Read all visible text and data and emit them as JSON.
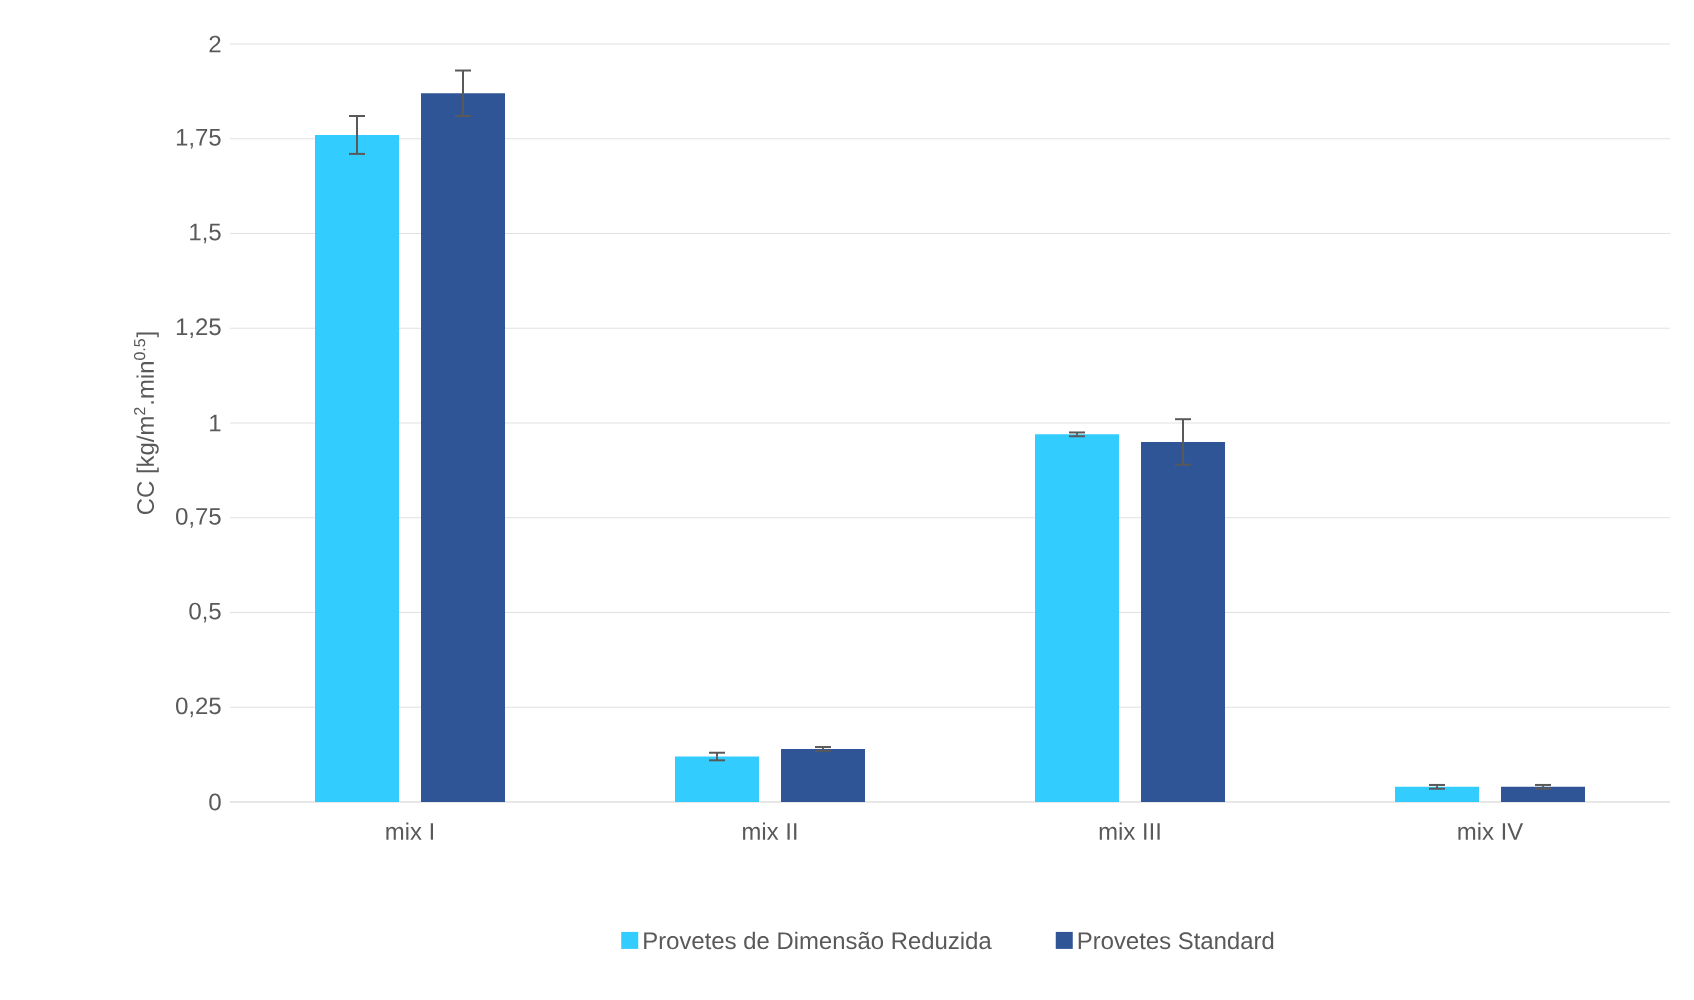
{
  "chart_data": {
    "type": "bar",
    "ylabel": "CC [kg/m$^{2}$.min$^{0.5}$]",
    "categories": [
      "mix I",
      "mix II",
      "mix III",
      "mix IV"
    ],
    "series": [
      {
        "name": "Provetes de Dimensão Reduzida",
        "color": "#33ccff",
        "values": [
          1.76,
          0.12,
          0.97,
          0.04
        ],
        "errors": [
          0.05,
          0.01,
          0.005,
          0.005
        ]
      },
      {
        "name": "Provetes Standard",
        "color": "#2f5597",
        "values": [
          1.87,
          0.14,
          0.95,
          0.04
        ],
        "errors": [
          0.06,
          0.005,
          0.06,
          0.005
        ]
      }
    ],
    "ylim": [
      0,
      2
    ],
    "yticks": [
      0,
      {
        "value": 0.25,
        "label": "0,25"
      },
      {
        "value": 0.5,
        "label": "0,5"
      },
      {
        "value": 0.75,
        "label": "0,75"
      },
      1,
      {
        "value": 1.25,
        "label": "1,25"
      },
      {
        "value": 1.5,
        "label": "1,5"
      },
      {
        "value": 1.75,
        "label": "1,75"
      },
      2
    ],
    "grid": "y",
    "legend": "bottom"
  }
}
